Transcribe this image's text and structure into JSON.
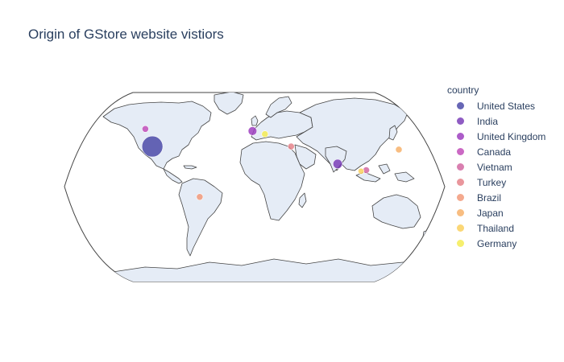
{
  "title": "Origin of GStore website vistiors",
  "legend": {
    "title": "country",
    "items": [
      {
        "label": "United States",
        "color": "#4c4ba8"
      },
      {
        "label": "India",
        "color": "#7b3fb8"
      },
      {
        "label": "United Kingdom",
        "color": "#9d3fc0"
      },
      {
        "label": "Canada",
        "color": "#c24fba"
      },
      {
        "label": "Vietnam",
        "color": "#d268a2"
      },
      {
        "label": "Turkey",
        "color": "#e5848b"
      },
      {
        "label": "Brazil",
        "color": "#f29a7a"
      },
      {
        "label": "Japan",
        "color": "#f7b26b"
      },
      {
        "label": "Thailand",
        "color": "#fad05e"
      },
      {
        "label": "Germany",
        "color": "#f4ec55"
      }
    ]
  },
  "chart_data": {
    "type": "scatter",
    "map_projection": "natural earth",
    "title": "Origin of GStore website vistiors",
    "legend_title": "country",
    "legend_position": "right",
    "size_encoding": "visitor count (relative, unlabeled)",
    "points": [
      {
        "country": "United States",
        "lon": -98,
        "lat": 39,
        "relative_size": 1.0
      },
      {
        "country": "India",
        "lon": 79,
        "lat": 22,
        "relative_size": 0.2
      },
      {
        "country": "United Kingdom",
        "lon": -2,
        "lat": 54,
        "relative_size": 0.17
      },
      {
        "country": "Canada",
        "lon": -106,
        "lat": 56,
        "relative_size": 0.1
      },
      {
        "country": "Vietnam",
        "lon": 106,
        "lat": 16,
        "relative_size": 0.1
      },
      {
        "country": "Turkey",
        "lon": 35,
        "lat": 39,
        "relative_size": 0.1
      },
      {
        "country": "Brazil",
        "lon": -52,
        "lat": -10,
        "relative_size": 0.1
      },
      {
        "country": "Japan",
        "lon": 138,
        "lat": 36,
        "relative_size": 0.1
      },
      {
        "country": "Thailand",
        "lon": 101,
        "lat": 15,
        "relative_size": 0.08
      },
      {
        "country": "Germany",
        "lon": 10,
        "lat": 51,
        "relative_size": 0.1
      }
    ]
  }
}
